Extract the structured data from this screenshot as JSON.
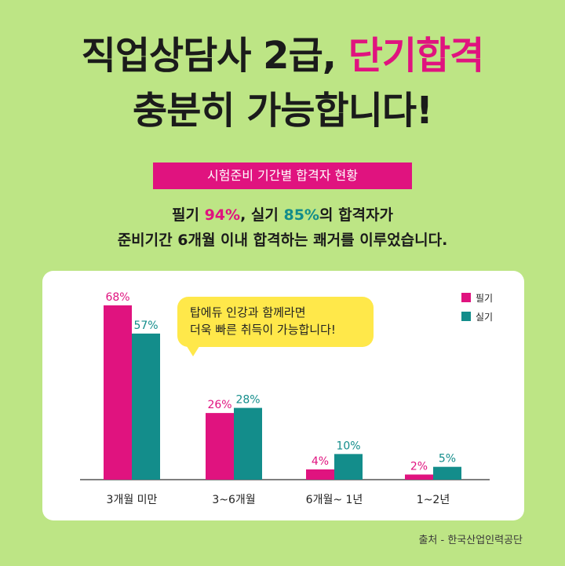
{
  "headline": {
    "line1_prefix": "직업상담사 2급,",
    "line1_highlight": "단기합격",
    "line2": "충분히 가능합니다!"
  },
  "band_label": "시험준비 기간별 합격자 현황",
  "description": {
    "l1_a": "필기 ",
    "l1_b": "94%",
    "l1_c": ", 실기 ",
    "l1_d": "85%",
    "l1_e": "의 합격자가",
    "line2": "준비기간 6개월 이내 합격하는 쾌거를 이루었습니다."
  },
  "bubble": {
    "line1": "탑에듀 인강과 함께라면",
    "line2": "더욱 빠른 취득이 가능합니다!"
  },
  "source": "출처 - 한국산업인력공단",
  "colors": {
    "pink": "#e0137f",
    "teal": "#138d8b",
    "background": "#bde585"
  },
  "chart_data": {
    "type": "bar",
    "categories": [
      "3개월 미만",
      "3~6개월",
      "6개월~ 1년",
      "1~2년"
    ],
    "series": [
      {
        "name": "필기",
        "values": [
          68,
          26,
          4,
          2
        ],
        "labels": [
          "68%",
          "26%",
          "4%",
          "2%"
        ],
        "color": "#e0137f"
      },
      {
        "name": "실기",
        "values": [
          57,
          28,
          10,
          5
        ],
        "labels": [
          "57%",
          "28%",
          "10%",
          "5%"
        ],
        "color": "#138d8b"
      }
    ],
    "ylim": [
      0,
      70
    ],
    "grid": false,
    "legend": "top-right"
  }
}
